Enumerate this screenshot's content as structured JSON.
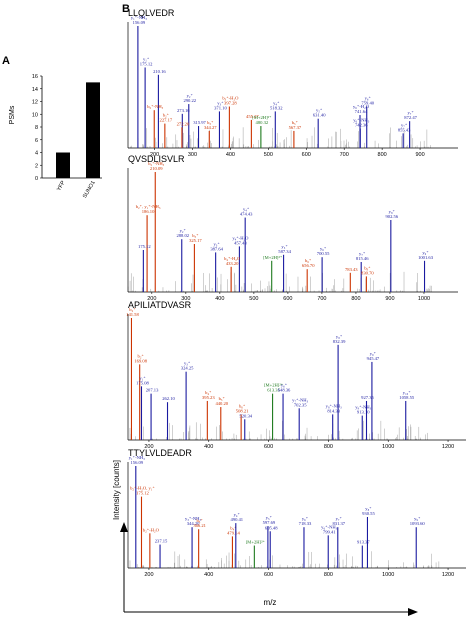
{
  "panels": {
    "a": "A",
    "b": "B"
  },
  "colors": {
    "bar": "#000000",
    "b_ion": "#cc3300",
    "y_ion": "#1a1aa0",
    "precursor": "#1e7a1e",
    "other": "#a0a0a0",
    "axis": "#000000"
  },
  "y_axis_label": "Intensity [counts]",
  "x_axis_label": "m/z",
  "chart_data": [
    {
      "type": "bar",
      "categories": [
        "YFP",
        "SUNO1"
      ],
      "values": [
        4,
        15
      ],
      "ylabel": "PSMs",
      "ylim": [
        0,
        16
      ],
      "yticks": [
        "0",
        "2",
        "4",
        "6",
        "8",
        "10",
        "12",
        "14",
        "16"
      ]
    },
    {
      "type": "spectrum",
      "peptide": "LLQLVEDR",
      "xlim": [
        130,
        1000
      ],
      "xticks": [
        "200",
        "300",
        "400",
        "500",
        "600",
        "700",
        "800",
        "900"
      ],
      "ylim": [
        0,
        100
      ],
      "peaks": [
        {
          "mz": 156.09,
          "i": 100,
          "c": "y",
          "t": [
            "y₁⁺-NH₃",
            "156.09"
          ]
        },
        {
          "mz": 175.12,
          "i": 66,
          "c": "y",
          "t": [
            "y₁⁺",
            "175.12"
          ]
        },
        {
          "mz": 210.16,
          "i": 60,
          "c": "y",
          "t": [
            "210.16"
          ]
        },
        {
          "mz": 199.18,
          "i": 31,
          "c": "b",
          "t": [
            "b₂⁺-NH₃"
          ]
        },
        {
          "mz": 227.17,
          "i": 20,
          "c": "b",
          "t": [
            "b₂⁺",
            "227.17"
          ]
        },
        {
          "mz": 290.22,
          "i": 36,
          "c": "y",
          "t": [
            "y₂⁺",
            "290.22"
          ]
        },
        {
          "mz": 273.16,
          "i": 28,
          "c": "y",
          "t": [
            "273.16"
          ]
        },
        {
          "mz": 272.2,
          "i": 17,
          "c": "b",
          "t": [
            "272.20"
          ]
        },
        {
          "mz": 315.97,
          "i": 18,
          "c": "y",
          "t": [
            "315.97"
          ]
        },
        {
          "mz": 344.27,
          "i": 14,
          "c": "b",
          "t": [
            "b₃⁺",
            "344.27"
          ]
        },
        {
          "mz": 371.1,
          "i": 30,
          "c": "y",
          "t": [
            "y₃⁺",
            "371.10"
          ]
        },
        {
          "mz": 397.28,
          "i": 34,
          "c": "b",
          "t": [
            "b₃⁺-H₂O",
            "397.28"
          ]
        },
        {
          "mz": 455.27,
          "i": 23,
          "c": "b",
          "t": [
            "455.27"
          ]
        },
        {
          "mz": 518.32,
          "i": 30,
          "c": "y",
          "t": [
            "y₄⁺",
            "518.32"
          ]
        },
        {
          "mz": 480.32,
          "i": 18,
          "c": "g",
          "t": [
            "[M+2H]²⁺",
            "480.32"
          ]
        },
        {
          "mz": 567.37,
          "i": 14,
          "c": "b",
          "t": [
            "b₅⁺",
            "567.37"
          ]
        },
        {
          "mz": 631.4,
          "i": 24,
          "c": "y",
          "t": [
            "y₅⁺",
            "631.40"
          ]
        },
        {
          "mz": 741.64,
          "i": 27,
          "c": "y",
          "t": [
            "y₆⁺-H₂O",
            "741.64"
          ]
        },
        {
          "mz": 759.4,
          "i": 34,
          "c": "y",
          "t": [
            "y₆⁺",
            "759.40"
          ]
        },
        {
          "mz": 742.36,
          "i": 16,
          "c": "y",
          "t": [
            "y₆⁺-NH₃",
            "742.36"
          ]
        },
        {
          "mz": 855.43,
          "i": 12,
          "c": "y",
          "t": [
            "y₇⁺",
            "855.43"
          ]
        },
        {
          "mz": 872.47,
          "i": 22,
          "c": "y",
          "t": [
            "y₇⁺",
            "872.47"
          ]
        }
      ]
    },
    {
      "type": "spectrum",
      "peptide": "QVSDLISVLR",
      "xlim": [
        130,
        1100
      ],
      "xticks": [
        "200",
        "300",
        "400",
        "500",
        "600",
        "700",
        "800",
        "900",
        "1000"
      ],
      "ylim": [
        0,
        100
      ],
      "peaks": [
        {
          "mz": 210.09,
          "i": 100,
          "c": "b",
          "t": [
            "b₂⁺-NH₃",
            "210.09"
          ]
        },
        {
          "mz": 186.1,
          "i": 64,
          "c": "b",
          "t": [
            "b₂⁺, y₁⁺-NH₃",
            "186.10"
          ]
        },
        {
          "mz": 175.12,
          "i": 35,
          "c": "y",
          "t": [
            "175.12"
          ]
        },
        {
          "mz": 288.02,
          "i": 44,
          "c": "y",
          "t": [
            "y₂⁺",
            "288.02"
          ]
        },
        {
          "mz": 325.17,
          "i": 40,
          "c": "b",
          "t": [
            "b₃⁺",
            "325.17"
          ]
        },
        {
          "mz": 474.43,
          "i": 62,
          "c": "y",
          "t": [
            "y₄⁺",
            "474.43"
          ]
        },
        {
          "mz": 457.43,
          "i": 38,
          "c": "y",
          "t": [
            "y₄⁺-H₂O",
            "457.43"
          ]
        },
        {
          "mz": 387.64,
          "i": 33,
          "c": "y",
          "t": [
            "y₃⁺",
            "387.64"
          ]
        },
        {
          "mz": 433.2,
          "i": 21,
          "c": "b",
          "t": [
            "b₄⁺-H₂O",
            "433.20"
          ]
        },
        {
          "mz": 552.4,
          "i": 26,
          "c": "g",
          "t": [
            "[M+2H]²⁺"
          ]
        },
        {
          "mz": 587.34,
          "i": 31,
          "c": "y",
          "t": [
            "y₅⁺",
            "587.34"
          ]
        },
        {
          "mz": 656.7,
          "i": 19,
          "c": "b",
          "t": [
            "b₆⁺",
            "656.70"
          ]
        },
        {
          "mz": 700.55,
          "i": 29,
          "c": "y",
          "t": [
            "y₆⁺",
            "700.55"
          ]
        },
        {
          "mz": 783.43,
          "i": 16,
          "c": "b",
          "t": [
            "783.43"
          ]
        },
        {
          "mz": 815.46,
          "i": 25,
          "c": "y",
          "t": [
            "y₇⁺",
            "815.46"
          ]
        },
        {
          "mz": 830.7,
          "i": 13,
          "c": "b",
          "t": [
            "b₈⁺",
            "830.70"
          ]
        },
        {
          "mz": 902.56,
          "i": 60,
          "c": "y",
          "t": [
            "y₈⁺",
            "902.56"
          ]
        },
        {
          "mz": 1001.63,
          "i": 26,
          "c": "y",
          "t": [
            "y₉⁺",
            "1001.63"
          ]
        }
      ]
    },
    {
      "type": "spectrum",
      "peptide": "APILIATDVASR",
      "xlim": [
        130,
        1260
      ],
      "xticks": [
        "200",
        "400",
        "600",
        "800",
        "1000",
        "1200"
      ],
      "ylim": [
        0,
        100
      ],
      "peaks": [
        {
          "mz": 141.58,
          "i": 100,
          "c": "b",
          "t": [
            "b₂⁺",
            "141.58"
          ]
        },
        {
          "mz": 169.08,
          "i": 62,
          "c": "b",
          "t": [
            "b₂⁺",
            "169.08"
          ]
        },
        {
          "mz": 175.08,
          "i": 44,
          "c": "y",
          "t": [
            "y₁⁺",
            "175.08"
          ]
        },
        {
          "mz": 207.13,
          "i": 38,
          "c": "y",
          "t": [
            "207.13"
          ]
        },
        {
          "mz": 324.25,
          "i": 56,
          "c": "y",
          "t": [
            "y₃⁺",
            "324.25"
          ]
        },
        {
          "mz": 262.1,
          "i": 31,
          "c": "y",
          "t": [
            "262.10"
          ]
        },
        {
          "mz": 395.23,
          "i": 32,
          "c": "b",
          "t": [
            "b₄⁺",
            "395.23"
          ]
        },
        {
          "mz": 440.2,
          "i": 27,
          "c": "b",
          "t": [
            "b₅⁺",
            "440.20"
          ]
        },
        {
          "mz": 508.21,
          "i": 21,
          "c": "b",
          "t": [
            "b₆⁺",
            "508.21"
          ]
        },
        {
          "mz": 520.34,
          "i": 17,
          "c": "y",
          "t": [
            "520.34"
          ]
        },
        {
          "mz": 613.35,
          "i": 38,
          "c": "g",
          "t": [
            "[M+2H]²⁺",
            "613.35"
          ]
        },
        {
          "mz": 648.36,
          "i": 38,
          "c": "y",
          "t": [
            "y₆⁺",
            "648.36"
          ]
        },
        {
          "mz": 702.35,
          "i": 26,
          "c": "y",
          "t": [
            "y₇⁺-NH₃",
            "702.35"
          ]
        },
        {
          "mz": 814.33,
          "i": 21,
          "c": "y",
          "t": [
            "y₈⁺-NH₃",
            "814.33"
          ]
        },
        {
          "mz": 832.39,
          "i": 78,
          "c": "y",
          "t": [
            "y₈⁺",
            "832.39"
          ]
        },
        {
          "mz": 945.47,
          "i": 64,
          "c": "y",
          "t": [
            "y₉⁺",
            "945.47"
          ]
        },
        {
          "mz": 927.35,
          "i": 32,
          "c": "y",
          "t": [
            "927.35"
          ]
        },
        {
          "mz": 913.1,
          "i": 20,
          "c": "y",
          "t": [
            "y₉⁺-NH₃",
            "913.10"
          ]
        },
        {
          "mz": 1058.55,
          "i": 32,
          "c": "y",
          "t": [
            "y₁₀⁺",
            "1058.55"
          ]
        }
      ]
    },
    {
      "type": "spectrum",
      "peptide": "TTYLVLDEADR",
      "xlim": [
        130,
        1260
      ],
      "xticks": [
        "200",
        "400",
        "600",
        "800",
        "1000",
        "1200"
      ],
      "ylim": [
        0,
        100
      ],
      "peaks": [
        {
          "mz": 156.09,
          "i": 100,
          "c": "y",
          "t": [
            "y₁⁺-NH₃",
            "156.09"
          ]
        },
        {
          "mz": 175.12,
          "i": 70,
          "c": "b",
          "t": [
            "b₂⁺-H₂O, y₁⁺",
            "175.12"
          ]
        },
        {
          "mz": 203.08,
          "i": 34,
          "c": "b",
          "t": [
            "b₂⁺-H₂O"
          ]
        },
        {
          "mz": 237.15,
          "i": 23,
          "c": "y",
          "t": [
            "237.15"
          ]
        },
        {
          "mz": 344.2,
          "i": 40,
          "c": "y",
          "t": [
            "y₃⁺-NH₃",
            "344.20"
          ]
        },
        {
          "mz": 366.21,
          "i": 38,
          "c": "b",
          "t": [
            "b₃⁺",
            "366.21"
          ]
        },
        {
          "mz": 479.14,
          "i": 31,
          "c": "b",
          "t": [
            "b₄⁺",
            "479.14"
          ]
        },
        {
          "mz": 490.41,
          "i": 44,
          "c": "y",
          "t": [
            "y₄⁺",
            "490.41"
          ]
        },
        {
          "mz": 597.69,
          "i": 41,
          "c": "y",
          "t": [
            "y₅⁺",
            "597.69"
          ]
        },
        {
          "mz": 605.48,
          "i": 36,
          "c": "y",
          "t": [
            "605.48"
          ]
        },
        {
          "mz": 552.4,
          "i": 22,
          "c": "g",
          "t": [
            "[M+2H]²⁺"
          ]
        },
        {
          "mz": 718.33,
          "i": 40,
          "c": "y",
          "t": [
            "y₆⁺",
            "718.33"
          ]
        },
        {
          "mz": 799.41,
          "i": 32,
          "c": "y",
          "t": [
            "y₆⁺-NH₃",
            "799.41"
          ]
        },
        {
          "mz": 831.37,
          "i": 40,
          "c": "y",
          "t": [
            "y₇⁺",
            "831.37"
          ]
        },
        {
          "mz": 930.55,
          "i": 50,
          "c": "y",
          "t": [
            "y₈⁺",
            "930.55"
          ]
        },
        {
          "mz": 913.37,
          "i": 22,
          "c": "y",
          "t": [
            "913.37"
          ]
        },
        {
          "mz": 1093.6,
          "i": 40,
          "c": "y",
          "t": [
            "y₉⁺",
            "1093.60"
          ]
        }
      ]
    }
  ]
}
